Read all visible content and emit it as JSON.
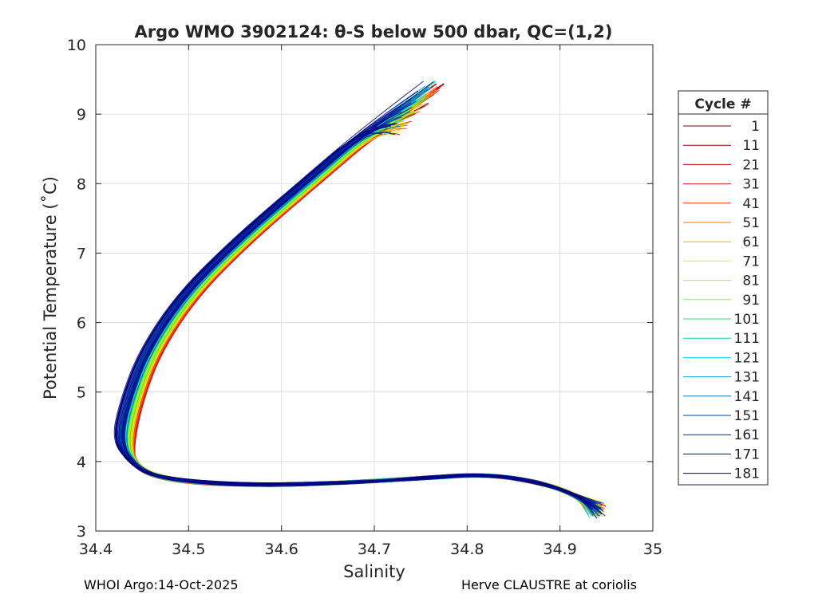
{
  "chart_data": {
    "type": "line",
    "title": "Argo WMO 3902124: θ-S below 500 dbar,  QC=(1,2)",
    "xlabel": "Salinity",
    "ylabel": "Potential Temperature (˚C)",
    "xlim": [
      34.4,
      35.0
    ],
    "ylim": [
      3,
      10
    ],
    "xticks": [
      "34.4",
      "34.5",
      "34.6",
      "34.7",
      "34.8",
      "34.9",
      "35"
    ],
    "yticks": [
      "3",
      "4",
      "5",
      "6",
      "7",
      "8",
      "9",
      "10"
    ],
    "grid": true,
    "legend": {
      "title": "Cycle #",
      "placement": "right, outside plot",
      "entries": [
        {
          "label": "1",
          "color": "#800000"
        },
        {
          "label": "11",
          "color": "#a00000"
        },
        {
          "label": "21",
          "color": "#cc0000"
        },
        {
          "label": "31",
          "color": "#e31a1c"
        },
        {
          "label": "41",
          "color": "#ff3300"
        },
        {
          "label": "51",
          "color": "#ff7700"
        },
        {
          "label": "61",
          "color": "#ffaa00"
        },
        {
          "label": "71",
          "color": "#ffe600"
        },
        {
          "label": "81",
          "color": "#c8f000"
        },
        {
          "label": "91",
          "color": "#7cff3a"
        },
        {
          "label": "101",
          "color": "#30e070"
        },
        {
          "label": "111",
          "color": "#00e0b0"
        },
        {
          "label": "121",
          "color": "#00d0ff"
        },
        {
          "label": "131",
          "color": "#00a0d0"
        },
        {
          "label": "141",
          "color": "#0070c0"
        },
        {
          "label": "151",
          "color": "#0040b0"
        },
        {
          "label": "161",
          "color": "#0020a0"
        },
        {
          "label": "171",
          "color": "#001088"
        },
        {
          "label": "181",
          "color": "#000080"
        }
      ]
    },
    "series_shape": {
      "S": [
        34.76,
        34.7,
        34.63,
        34.56,
        34.5,
        34.46,
        34.44,
        34.43,
        34.44,
        34.47,
        34.55,
        34.65,
        34.75,
        34.82,
        34.88,
        34.92,
        34.94
      ],
      "theta": [
        9.4,
        8.8,
        8.0,
        7.2,
        6.4,
        5.6,
        4.9,
        4.3,
        3.95,
        3.75,
        3.66,
        3.68,
        3.76,
        3.82,
        3.7,
        3.5,
        3.3
      ]
    }
  },
  "footer": {
    "left": "WHOI Argo:14-Oct-2025",
    "right": "Herve CLAUSTRE at coriolis"
  }
}
